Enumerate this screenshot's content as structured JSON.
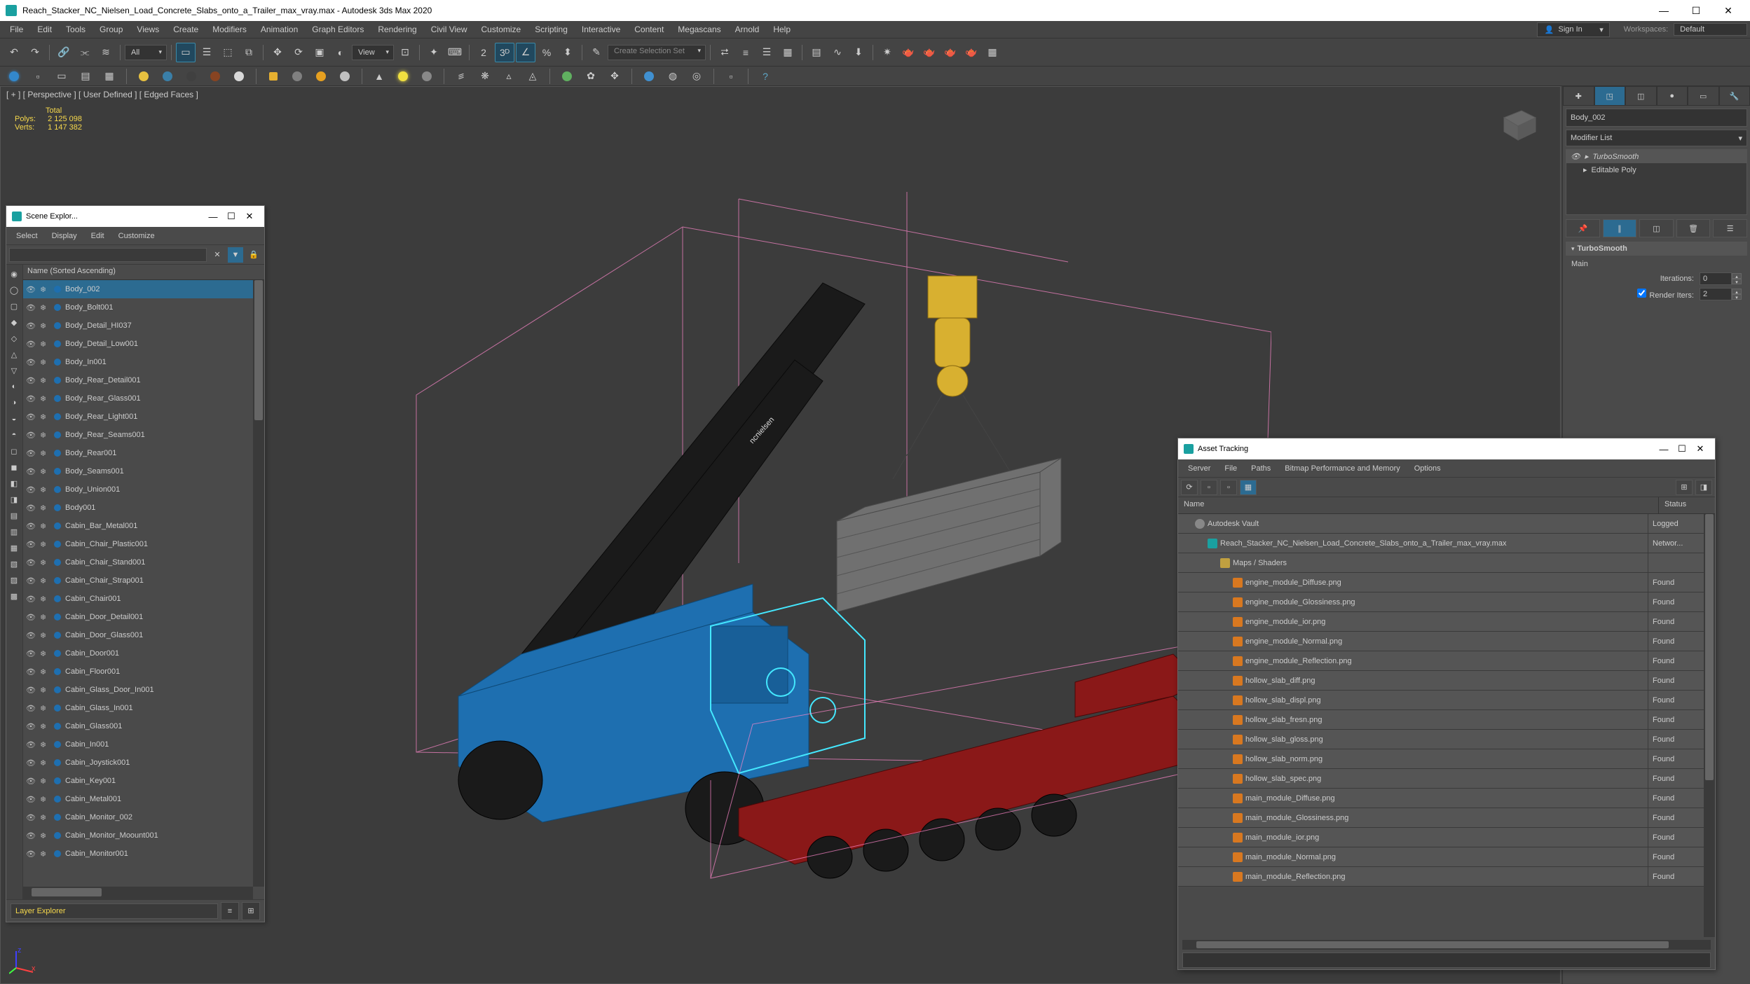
{
  "titlebar": {
    "app_icon_color": "#1aa0a0",
    "title": "Reach_Stacker_NC_Nielsen_Load_Concrete_Slabs_onto_a_Trailer_max_vray.max - Autodesk 3ds Max 2020"
  },
  "menubar": {
    "items": [
      "File",
      "Edit",
      "Tools",
      "Group",
      "Views",
      "Create",
      "Modifiers",
      "Animation",
      "Graph Editors",
      "Rendering",
      "Civil View",
      "Customize",
      "Scripting",
      "Interactive",
      "Content",
      "Megascans",
      "Arnold",
      "Help"
    ],
    "signin_label": "Sign In",
    "workspaces_label": "Workspaces:",
    "workspace_value": "Default"
  },
  "toolbar1": {
    "filter_label": "All",
    "view_label": "View",
    "selset_placeholder": "Create Selection Set"
  },
  "viewport": {
    "label": "[ + ] [ Perspective ] [ User Defined ] [ Edged Faces ]",
    "total_label": "Total",
    "polys_label": "Polys:",
    "polys_value": "2 125 098",
    "verts_label": "Verts:",
    "verts_value": "1 147 382",
    "background": "#3c3c3c",
    "bbox_color": "#ff88cc",
    "machine_color": "#1e6fb0",
    "selection_color": "#44e8ff",
    "crane_color": "#1a1a1a",
    "hook_color": "#d8b030",
    "slab_color": "#707070",
    "trailer_color": "#8a1818"
  },
  "scene_explorer": {
    "title": "Scene Explor...",
    "menus": [
      "Select",
      "Display",
      "Edit",
      "Customize"
    ],
    "header": "Name (Sorted Ascending)",
    "node_color": "#1e6fb0",
    "rows": [
      {
        "name": "Body_002",
        "selected": true
      },
      {
        "name": "Body_Bolt001"
      },
      {
        "name": "Body_Detail_HI037"
      },
      {
        "name": "Body_Detail_Low001"
      },
      {
        "name": "Body_In001"
      },
      {
        "name": "Body_Rear_Detail001"
      },
      {
        "name": "Body_Rear_Glass001"
      },
      {
        "name": "Body_Rear_Light001"
      },
      {
        "name": "Body_Rear_Seams001"
      },
      {
        "name": "Body_Rear001"
      },
      {
        "name": "Body_Seams001"
      },
      {
        "name": "Body_Union001"
      },
      {
        "name": "Body001"
      },
      {
        "name": "Cabin_Bar_Metal001"
      },
      {
        "name": "Cabin_Chair_Plastic001"
      },
      {
        "name": "Cabin_Chair_Stand001"
      },
      {
        "name": "Cabin_Chair_Strap001"
      },
      {
        "name": "Cabin_Chair001"
      },
      {
        "name": "Cabin_Door_Detail001"
      },
      {
        "name": "Cabin_Door_Glass001"
      },
      {
        "name": "Cabin_Door001"
      },
      {
        "name": "Cabin_Floor001"
      },
      {
        "name": "Cabin_Glass_Door_In001"
      },
      {
        "name": "Cabin_Glass_In001"
      },
      {
        "name": "Cabin_Glass001"
      },
      {
        "name": "Cabin_In001"
      },
      {
        "name": "Cabin_Joystick001"
      },
      {
        "name": "Cabin_Key001"
      },
      {
        "name": "Cabin_Metal001"
      },
      {
        "name": "Cabin_Monitor_002"
      },
      {
        "name": "Cabin_Monitor_Moount001"
      },
      {
        "name": "Cabin_Monitor001"
      }
    ],
    "scroll_thumb_ratio": 0.4,
    "footer_label": "Layer Explorer",
    "left_icons": [
      "◉",
      "◯",
      "▢",
      "◆",
      "◇",
      "△",
      "▽",
      "◐",
      "◑",
      "◒",
      "◓",
      "◻",
      "◼",
      "◧",
      "◨",
      "▤",
      "▥",
      "▦",
      "▧",
      "▨",
      "▩"
    ]
  },
  "command_panel": {
    "tabs_active_index": 1,
    "objname": "Body_002",
    "modlist_label": "Modifier List",
    "stack": [
      {
        "label": "TurboSmooth",
        "active": true,
        "expandable": true
      },
      {
        "label": "Editable Poly",
        "expandable": true
      }
    ],
    "rollout": {
      "title": "TurboSmooth",
      "section": "Main",
      "iter_label": "Iterations:",
      "iter_value": "0",
      "render_label": "Render Iters:",
      "render_value": "2",
      "render_checked": true
    }
  },
  "asset_tracking": {
    "title": "Asset Tracking",
    "menus": [
      "Server",
      "File",
      "Paths",
      "Bitmap Performance and Memory",
      "Options"
    ],
    "columns": {
      "name": "Name",
      "status": "Status"
    },
    "bitmap_icon_color": "#d87820",
    "rows": [
      {
        "indent": 1,
        "icon": "vault",
        "name": "Autodesk Vault",
        "status": "Logged"
      },
      {
        "indent": 2,
        "icon": "max",
        "name": "Reach_Stacker_NC_Nielsen_Load_Concrete_Slabs_onto_a_Trailer_max_vray.max",
        "status": "Networ..."
      },
      {
        "indent": 3,
        "icon": "folder",
        "name": "Maps / Shaders",
        "status": ""
      },
      {
        "indent": 4,
        "icon": "bitmap",
        "name": "engine_module_Diffuse.png",
        "status": "Found"
      },
      {
        "indent": 4,
        "icon": "bitmap",
        "name": "engine_module_Glossiness.png",
        "status": "Found"
      },
      {
        "indent": 4,
        "icon": "bitmap",
        "name": "engine_module_ior.png",
        "status": "Found"
      },
      {
        "indent": 4,
        "icon": "bitmap",
        "name": "engine_module_Normal.png",
        "status": "Found"
      },
      {
        "indent": 4,
        "icon": "bitmap",
        "name": "engine_module_Reflection.png",
        "status": "Found"
      },
      {
        "indent": 4,
        "icon": "bitmap",
        "name": "hollow_slab_diff.png",
        "status": "Found"
      },
      {
        "indent": 4,
        "icon": "bitmap",
        "name": "hollow_slab_displ.png",
        "status": "Found"
      },
      {
        "indent": 4,
        "icon": "bitmap",
        "name": "hollow_slab_fresn.png",
        "status": "Found"
      },
      {
        "indent": 4,
        "icon": "bitmap",
        "name": "hollow_slab_gloss.png",
        "status": "Found"
      },
      {
        "indent": 4,
        "icon": "bitmap",
        "name": "hollow_slab_norm.png",
        "status": "Found"
      },
      {
        "indent": 4,
        "icon": "bitmap",
        "name": "hollow_slab_spec.png",
        "status": "Found"
      },
      {
        "indent": 4,
        "icon": "bitmap",
        "name": "main_module_Diffuse.png",
        "status": "Found"
      },
      {
        "indent": 4,
        "icon": "bitmap",
        "name": "main_module_Glossiness.png",
        "status": "Found"
      },
      {
        "indent": 4,
        "icon": "bitmap",
        "name": "main_module_ior.png",
        "status": "Found"
      },
      {
        "indent": 4,
        "icon": "bitmap",
        "name": "main_module_Normal.png",
        "status": "Found"
      },
      {
        "indent": 4,
        "icon": "bitmap",
        "name": "main_module_Reflection.png",
        "status": "Found"
      }
    ]
  }
}
